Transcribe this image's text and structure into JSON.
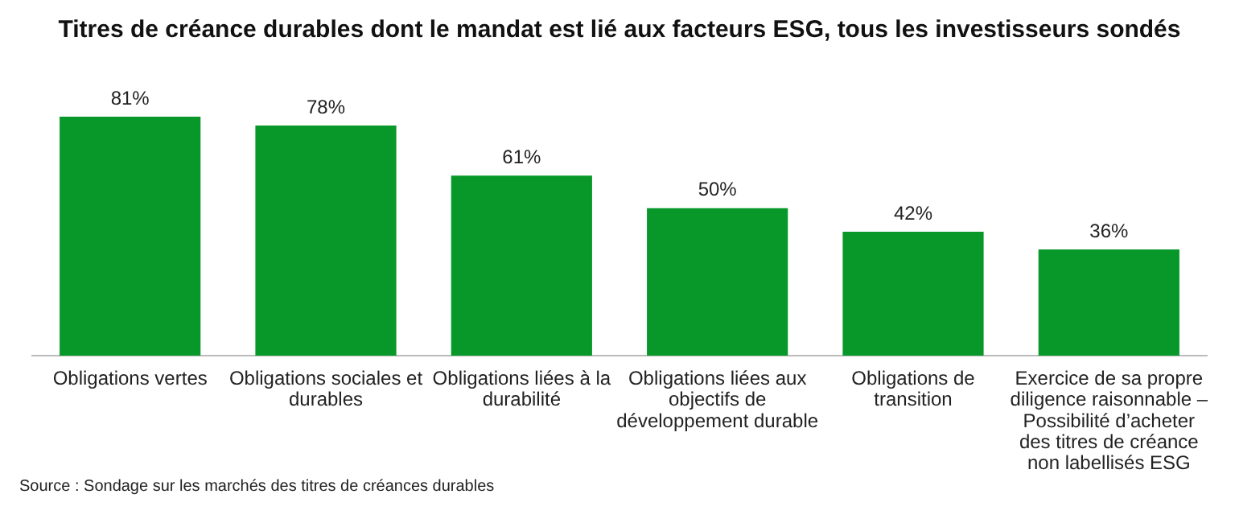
{
  "chart_data": {
    "type": "bar",
    "title": "Titres de créance durables dont le mandat est lié aux facteurs ESG, tous les investisseurs sondés",
    "categories": [
      "Obligations vertes",
      "Obligations sociales et durables",
      "Obligations liées à la durabilité",
      "Obligations liées aux objectifs de développement durable",
      "Obligations de transition",
      "Exercice de sa propre diligence raisonnable – Possibilité d’acheter des titres de créance non labellisés ESG"
    ],
    "values": [
      81,
      78,
      61,
      50,
      42,
      36
    ],
    "value_labels": [
      "81%",
      "78%",
      "61%",
      "50%",
      "42%",
      "36%"
    ],
    "color": "#08982a",
    "grid": false,
    "legend": false,
    "annotations": [
      "Source : Sondage sur les marchés des titres de créances durables"
    ]
  }
}
